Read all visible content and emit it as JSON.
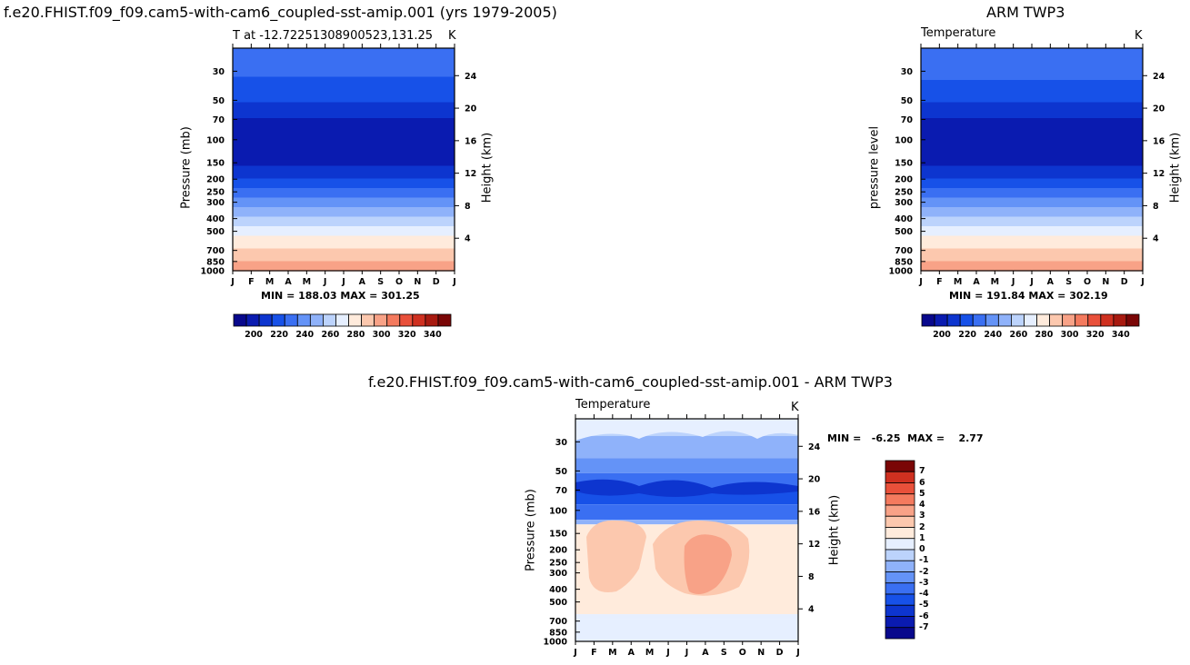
{
  "page": {
    "left_title": "f.e20.FHIST.f09_f09.cam5-with-cam6_coupled-sst-amip.001 (yrs 1979-2005)",
    "right_title": "ARM TWP3",
    "bottom_title": "f.e20.FHIST.f09_f09.cam5-with-cam6_coupled-sst-amip.001  -  ARM TWP3"
  },
  "chart_data": [
    {
      "type": "heatmap",
      "id": "model",
      "subtitle_left": "T at -12.72251308900523,131.25",
      "subtitle_right": "K",
      "ylabel": "Pressure (mb)",
      "ylabel_right": "Height (km)",
      "months": [
        "J",
        "F",
        "M",
        "A",
        "M",
        "J",
        "J",
        "A",
        "S",
        "O",
        "N",
        "D",
        "J"
      ],
      "pressure_ticks": [
        "30",
        "50",
        "70",
        "100",
        "150",
        "200",
        "250",
        "300",
        "400",
        "500",
        "700",
        "850",
        "1000"
      ],
      "height_ticks": [
        "24",
        "20",
        "16",
        "12",
        "8",
        "4"
      ],
      "min_max": "MIN = 188.03  MAX = 301.25",
      "colorbar_labels": [
        "200",
        "220",
        "240",
        "260",
        "280",
        "300",
        "320",
        "340"
      ],
      "profile": {
        "p": [
          30,
          50,
          70,
          100,
          150,
          200,
          250,
          300,
          400,
          500,
          700,
          850,
          1000
        ],
        "t": [
          222,
          212,
          200,
          196,
          196,
          212,
          224,
          234,
          252,
          266,
          282,
          290,
          300
        ]
      }
    },
    {
      "type": "heatmap",
      "id": "obs",
      "subtitle_left": "Temperature",
      "subtitle_right": "K",
      "ylabel": "pressure level",
      "ylabel_right": "Height (km)",
      "months": [
        "J",
        "F",
        "M",
        "A",
        "M",
        "J",
        "J",
        "A",
        "S",
        "O",
        "N",
        "D",
        "J"
      ],
      "pressure_ticks": [
        "30",
        "50",
        "70",
        "100",
        "150",
        "200",
        "250",
        "300",
        "400",
        "500",
        "700",
        "850",
        "1000"
      ],
      "height_ticks": [
        "24",
        "20",
        "16",
        "12",
        "8",
        "4"
      ],
      "min_max": "MIN = 191.84  MAX = 302.19",
      "colorbar_labels": [
        "200",
        "220",
        "240",
        "260",
        "280",
        "300",
        "320",
        "340"
      ],
      "profile": {
        "p": [
          30,
          50,
          70,
          100,
          150,
          200,
          250,
          300,
          400,
          500,
          700,
          850,
          1000
        ],
        "t": [
          224,
          212,
          200,
          196,
          196,
          212,
          224,
          234,
          252,
          266,
          282,
          290,
          300
        ]
      }
    },
    {
      "type": "heatmap",
      "id": "diff",
      "subtitle_left": "Temperature",
      "subtitle_right": "K",
      "ylabel": "Pressure (mb)",
      "ylabel_right": "Height (km)",
      "months": [
        "J",
        "F",
        "M",
        "A",
        "M",
        "J",
        "J",
        "A",
        "S",
        "O",
        "N",
        "D",
        "J"
      ],
      "pressure_ticks": [
        "30",
        "50",
        "70",
        "100",
        "150",
        "200",
        "250",
        "300",
        "400",
        "500",
        "700",
        "850",
        "1000"
      ],
      "height_ticks": [
        "24",
        "20",
        "16",
        "12",
        "8",
        "4"
      ],
      "min_max": "MIN =   -6.25  MAX =    2.77",
      "colorbar_labels": [
        "7",
        "6",
        "5",
        "4",
        "3",
        "2",
        "1",
        "0",
        "-1",
        "-2",
        "-3",
        "-4",
        "-5",
        "-6",
        "-7"
      ]
    }
  ],
  "colors": {
    "temp_scale": [
      "#08088c",
      "#0a1bb0",
      "#0d35cf",
      "#1751e8",
      "#3a6ff2",
      "#6493f7",
      "#8fb2fa",
      "#bcd3fc",
      "#e6efff",
      "#ffebdc",
      "#fcc8ae",
      "#f8a287",
      "#f47a5e",
      "#e9503a",
      "#cf3020",
      "#a81a10",
      "#7a0606"
    ],
    "diff_scale": [
      "#08088c",
      "#0a1bb0",
      "#0d35cf",
      "#1751e8",
      "#3a6ff2",
      "#6493f7",
      "#8fb2fa",
      "#bcd3fc",
      "#e6efff",
      "#ffebdc",
      "#fcc8ae",
      "#f8a287",
      "#f47a5e",
      "#e9503a",
      "#cf3020",
      "#7a0606"
    ]
  }
}
